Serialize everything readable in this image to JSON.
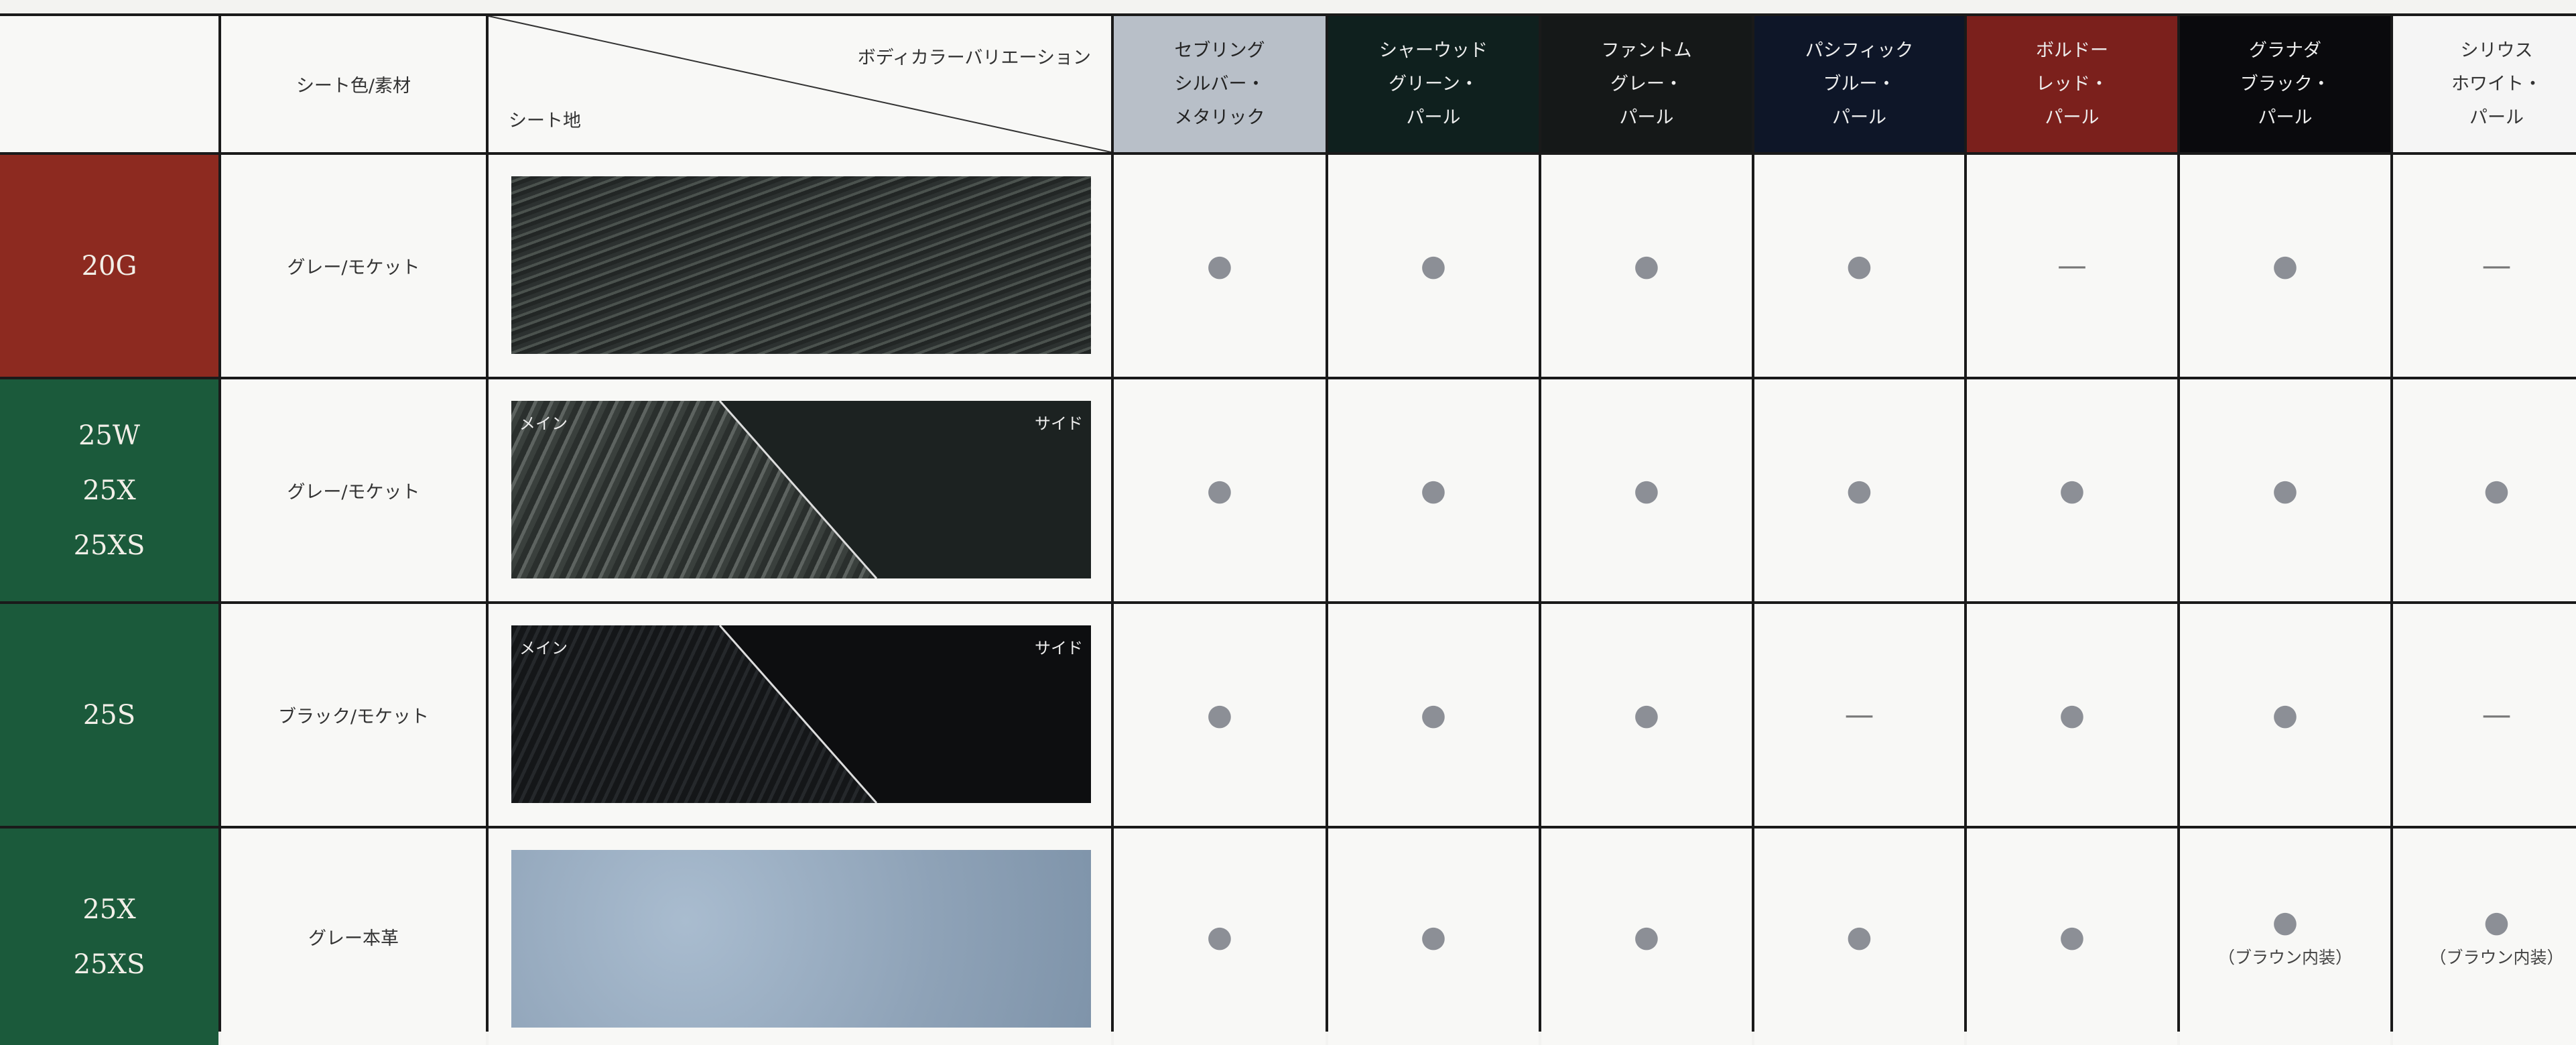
{
  "header": {
    "seat_label": "シート色/素材",
    "diagonal_top": "ボディカラーバリエーション",
    "diagonal_bottom": "シート地"
  },
  "body_colors": [
    {
      "lines": [
        "セブリング",
        "シルバー・",
        "メタリック"
      ]
    },
    {
      "lines": [
        "シャーウッド",
        "グリーン・",
        "パール"
      ]
    },
    {
      "lines": [
        "ファントム",
        "グレー・",
        "パール"
      ]
    },
    {
      "lines": [
        "パシフィック",
        "ブルー・",
        "パール"
      ]
    },
    {
      "lines": [
        "ボルドー",
        "レッド・",
        "パール"
      ]
    },
    {
      "lines": [
        "グラナダ",
        "ブラック・",
        "パール"
      ]
    },
    {
      "lines": [
        "シリウス",
        "ホワイト・",
        "パール"
      ]
    }
  ],
  "rows": [
    {
      "grades": [
        "20G"
      ],
      "seat": "グレー/モケット",
      "cells": [
        {
          "mark": "●"
        },
        {
          "mark": "●"
        },
        {
          "mark": "●"
        },
        {
          "mark": "●"
        },
        {
          "mark": "—"
        },
        {
          "mark": "●"
        },
        {
          "mark": "—"
        }
      ]
    },
    {
      "grades": [
        "25W",
        "25X",
        "25XS"
      ],
      "seat": "グレー/モケット",
      "swatch_labels": [
        "メイン",
        "サイド"
      ],
      "cells": [
        {
          "mark": "●"
        },
        {
          "mark": "●"
        },
        {
          "mark": "●"
        },
        {
          "mark": "●"
        },
        {
          "mark": "●"
        },
        {
          "mark": "●"
        },
        {
          "mark": "●"
        }
      ]
    },
    {
      "grades": [
        "25S"
      ],
      "seat": "ブラック/モケット",
      "swatch_labels": [
        "メイン",
        "サイド"
      ],
      "cells": [
        {
          "mark": "●"
        },
        {
          "mark": "●"
        },
        {
          "mark": "●"
        },
        {
          "mark": "—"
        },
        {
          "mark": "●"
        },
        {
          "mark": "●"
        },
        {
          "mark": "—"
        }
      ]
    },
    {
      "grades": [
        "25X",
        "25XS"
      ],
      "seat": "グレー本革",
      "cells": [
        {
          "mark": "●"
        },
        {
          "mark": "●"
        },
        {
          "mark": "●"
        },
        {
          "mark": "●"
        },
        {
          "mark": "●"
        },
        {
          "mark": "●",
          "note": "（ブラウン内装）"
        },
        {
          "mark": "●",
          "note": "（ブラウン内装）"
        }
      ]
    }
  ]
}
